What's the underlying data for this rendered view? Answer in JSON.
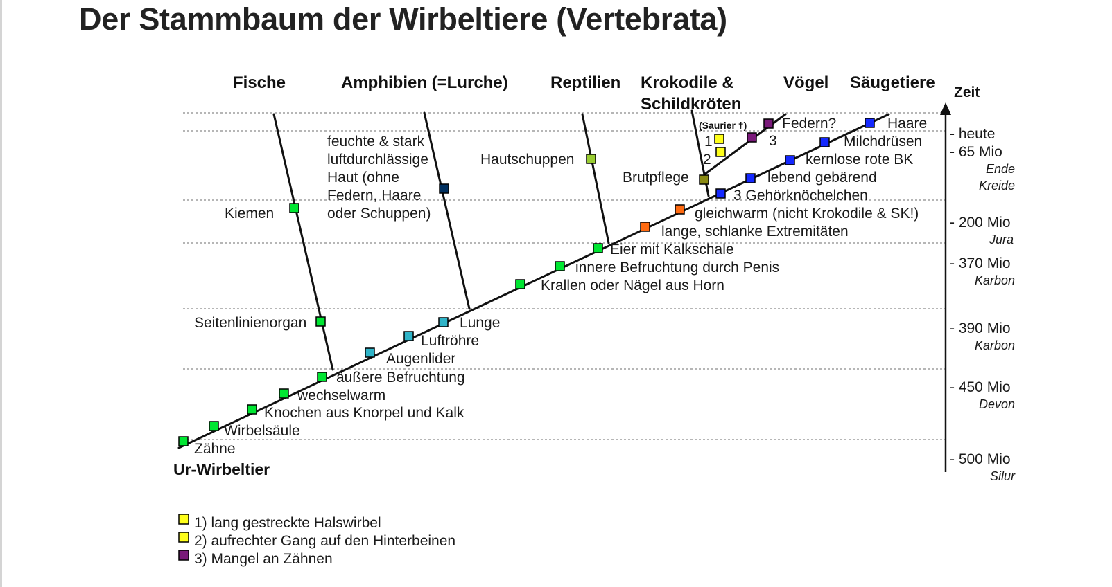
{
  "page": {
    "title": "Der Stammbaum der Wirbeltiere (Vertebrata)"
  },
  "groups": [
    "Fische",
    "Amphibien (=Lurche)",
    "Reptilien",
    "Krokodile &",
    "Schildkröten",
    "Vögel",
    "Säugetiere"
  ],
  "time_axis": {
    "label": "Zeit",
    "ticks": [
      {
        "label": "- heute",
        "era": ""
      },
      {
        "label": "- 65 Mio",
        "era": "Ende"
      },
      {
        "label": "",
        "era": "Kreide"
      },
      {
        "label": "- 200 Mio",
        "era": "Jura"
      },
      {
        "label": "- 370 Mio",
        "era": "Karbon"
      },
      {
        "label": "- 390 Mio",
        "era": "Karbon"
      },
      {
        "label": "- 450 Mio",
        "era": "Devon"
      },
      {
        "label": "- 500 Mio",
        "era": "Silur"
      }
    ]
  },
  "root_label": "Ur-Wirbeltier",
  "traits": [
    {
      "label": "Zähne",
      "color": "#00e632"
    },
    {
      "label": "Wirbelsäule",
      "color": "#00e632"
    },
    {
      "label": "Knochen aus Knorpel und Kalk",
      "color": "#00e632"
    },
    {
      "label": "wechselwarm",
      "color": "#00e632"
    },
    {
      "label": "äußere Befruchtung",
      "color": "#00e632"
    },
    {
      "label": "Augenlider",
      "color": "#2fb4c8"
    },
    {
      "label": "Luftröhre",
      "color": "#2fb4c8"
    },
    {
      "label": "Lunge",
      "color": "#2fb4c8"
    },
    {
      "label": "Krallen oder Nägel aus Horn",
      "color": "#00e632"
    },
    {
      "label": "innere Befruchtung durch Penis",
      "color": "#00e632"
    },
    {
      "label": "Eier mit Kalkschale",
      "color": "#00e632"
    },
    {
      "label": "lange, schlanke Extremitäten",
      "color": "#ff6a10"
    },
    {
      "label": "gleichwarm (nicht Krokodile & SK!)",
      "color": "#ff6a10"
    },
    {
      "label": "3 Gehörknöchelchen",
      "color": "#1428ff"
    },
    {
      "label": "lebend gebärend",
      "color": "#1428ff"
    },
    {
      "label": "kernlose rote BK",
      "color": "#1428ff"
    },
    {
      "label": "Milchdrüsen",
      "color": "#1428ff"
    },
    {
      "label": "Haare",
      "color": "#1428ff"
    },
    {
      "label": "Kiemen",
      "color": "#00e632"
    },
    {
      "label": "Seitenlinienorgan",
      "color": "#00e632"
    },
    {
      "label": "feuchte & stark",
      "color": "#003060"
    },
    {
      "label": "luftdurchlässige",
      "color": ""
    },
    {
      "label": "Haut (ohne",
      "color": ""
    },
    {
      "label": "Federn, Haare",
      "color": ""
    },
    {
      "label": "oder Schuppen)",
      "color": ""
    },
    {
      "label": "Hautschuppen",
      "color": "#9acd32"
    },
    {
      "label": "Brutpflege",
      "color": "#8b8b14"
    },
    {
      "label": "Federn?",
      "color": "#7a1a7a"
    },
    {
      "label": "(Saurier †)",
      "color": ""
    },
    {
      "label": "1",
      "color": "#ffff1a"
    },
    {
      "label": "2",
      "color": "#ffff1a"
    },
    {
      "label": "3",
      "color": "#7a1a7a"
    }
  ],
  "legend": [
    {
      "label": "1) lang gestreckte Halswirbel",
      "color": "#ffff1a"
    },
    {
      "label": "2) aufrechter Gang auf den Hinterbeinen",
      "color": "#ffff1a"
    },
    {
      "label": "3) Mangel an Zähnen",
      "color": "#7a1a7a"
    }
  ]
}
